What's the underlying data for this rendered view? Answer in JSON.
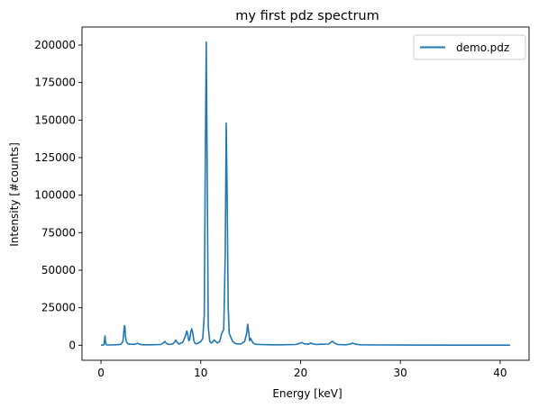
{
  "chart_data": {
    "type": "line",
    "title": "my first pdz spectrum",
    "xlabel": "Energy [keV]",
    "ylabel": "Intensity [#counts]",
    "xlim": [
      -1.9,
      42.9
    ],
    "ylim": [
      -10000,
      212000
    ],
    "xticks": [
      0,
      10,
      20,
      30,
      40
    ],
    "xtick_labels": [
      "0",
      "10",
      "20",
      "30",
      "40"
    ],
    "yticks": [
      0,
      25000,
      50000,
      75000,
      100000,
      125000,
      150000,
      175000,
      200000
    ],
    "ytick_labels": [
      "0",
      "25000",
      "50000",
      "75000",
      "100000",
      "125000",
      "150000",
      "175000",
      "200000"
    ],
    "grid": false,
    "legend_position": "top-right",
    "series": [
      {
        "name": "demo.pdz",
        "color": "#1f77b4",
        "x": [
          0.0,
          0.3,
          0.35,
          0.4,
          0.45,
          0.5,
          0.6,
          1.0,
          1.5,
          2.0,
          2.2,
          2.3,
          2.35,
          2.4,
          2.45,
          2.55,
          2.7,
          3.0,
          3.3,
          3.55,
          3.7,
          3.85,
          4.2,
          5.0,
          6.0,
          6.25,
          6.4,
          6.55,
          6.8,
          7.2,
          7.4,
          7.5,
          7.6,
          7.8,
          8.2,
          8.45,
          8.6,
          8.7,
          8.8,
          8.9,
          9.0,
          9.1,
          9.2,
          9.3,
          9.4,
          9.5,
          9.7,
          10.0,
          10.2,
          10.35,
          10.45,
          10.55,
          10.65,
          10.75,
          10.9,
          11.1,
          11.35,
          11.5,
          11.65,
          11.9,
          12.1,
          12.3,
          12.45,
          12.55,
          12.65,
          12.75,
          12.85,
          13.0,
          13.2,
          13.5,
          14.0,
          14.4,
          14.6,
          14.7,
          14.8,
          14.9,
          15.0,
          15.15,
          15.3,
          15.6,
          16.0,
          17.0,
          18.0,
          19.5,
          19.9,
          20.1,
          20.4,
          20.8,
          21.0,
          21.3,
          21.6,
          22.0,
          22.8,
          23.0,
          23.2,
          23.4,
          23.7,
          24.5,
          25.0,
          25.2,
          25.5,
          26.0,
          28.0,
          30.0,
          35.0,
          41.0
        ],
        "y": [
          0,
          300,
          3000,
          6200,
          3000,
          800,
          200,
          200,
          300,
          600,
          2500,
          10000,
          13000,
          12500,
          6000,
          2200,
          900,
          700,
          600,
          1000,
          1300,
          700,
          300,
          300,
          500,
          1500,
          2600,
          1200,
          500,
          900,
          2200,
          3500,
          2200,
          800,
          2000,
          6000,
          9500,
          7000,
          3000,
          4000,
          9000,
          11000,
          8000,
          3500,
          1500,
          1000,
          1200,
          2500,
          4500,
          20000,
          120000,
          202000,
          110000,
          12000,
          2500,
          1500,
          3500,
          2500,
          1500,
          2500,
          8000,
          10500,
          60000,
          148000,
          95000,
          25000,
          8000,
          5500,
          2500,
          1000,
          800,
          2500,
          8000,
          14000,
          9000,
          3000,
          4500,
          2500,
          1200,
          600,
          500,
          300,
          300,
          500,
          1200,
          1800,
          900,
          700,
          1500,
          800,
          500,
          700,
          800,
          1800,
          2600,
          1500,
          500,
          300,
          800,
          1500,
          700,
          300,
          200,
          150,
          100,
          100
        ]
      }
    ]
  }
}
